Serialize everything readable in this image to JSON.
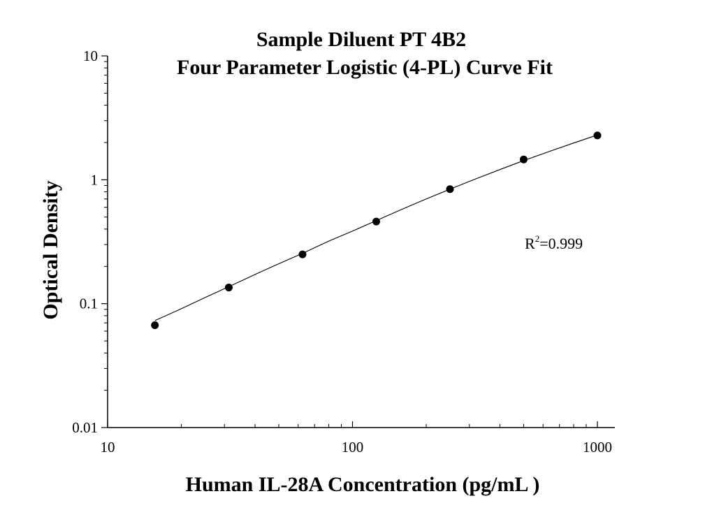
{
  "chart_data": {
    "type": "scatter",
    "title": "Sample Diluent PT 4B2",
    "subtitle": "Four Parameter Logistic (4-PL) Curve Fit",
    "xlabel": "Human IL-28A Concentration (pg/mL )",
    "ylabel": "Optical Density",
    "x_scale": "log",
    "y_scale": "log",
    "xlim": [
      10,
      1000
    ],
    "ylim": [
      0.01,
      10
    ],
    "x_ticks": [
      {
        "value": 10,
        "label": "10"
      },
      {
        "value": 100,
        "label": "100"
      },
      {
        "value": 1000,
        "label": "1000"
      }
    ],
    "y_ticks": [
      {
        "value": 0.01,
        "label": "0.01"
      },
      {
        "value": 0.1,
        "label": "0.1"
      },
      {
        "value": 1,
        "label": "1"
      },
      {
        "value": 10,
        "label": "10"
      }
    ],
    "grid": false,
    "series": [
      {
        "marker": "filled-circle",
        "x": [
          15.6,
          31.25,
          62.5,
          125,
          250,
          500,
          1000
        ],
        "y": [
          0.067,
          0.135,
          0.25,
          0.46,
          0.84,
          1.46,
          2.28
        ]
      }
    ],
    "fit_curve": {
      "style": "thin-line",
      "x": [
        15.6,
        20,
        25,
        31.25,
        40,
        50,
        62.5,
        80,
        100,
        125,
        160,
        200,
        250,
        320,
        400,
        500,
        640,
        800,
        1000
      ],
      "y": [
        0.073,
        0.091,
        0.112,
        0.137,
        0.172,
        0.21,
        0.255,
        0.32,
        0.385,
        0.468,
        0.58,
        0.7,
        0.84,
        1.02,
        1.21,
        1.43,
        1.7,
        1.98,
        2.3
      ]
    },
    "annotation": {
      "base": "R",
      "sup": "2",
      "text": "=0.999"
    },
    "colors": {
      "axis": "#000000",
      "marker": "#000000",
      "line": "#000000",
      "background": "#ffffff"
    }
  }
}
